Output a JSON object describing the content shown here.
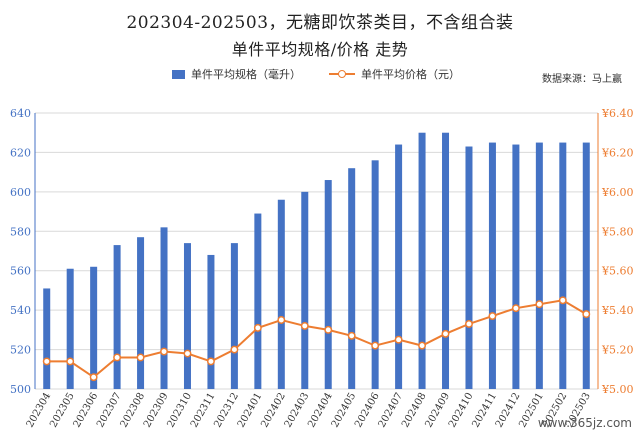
{
  "chart_data": {
    "type": "bar",
    "title": "202304-202503，无糖即饮茶类目，不含组合装",
    "subtitle": "单件平均规格/价格 走势",
    "source": "数据来源：马上赢",
    "categories": [
      "202304",
      "202305",
      "202306",
      "202307",
      "202308",
      "202309",
      "202310",
      "202311",
      "202312",
      "202401",
      "202402",
      "202403",
      "202404",
      "202405",
      "202406",
      "202407",
      "202408",
      "202409",
      "202410",
      "202411",
      "202412",
      "202501",
      "202502",
      "202503"
    ],
    "series": [
      {
        "name": "单件平均规格（毫升）",
        "type": "bar",
        "axis": "left",
        "values": [
          551,
          561,
          562,
          573,
          577,
          582,
          574,
          568,
          574,
          589,
          596,
          600,
          606,
          612,
          616,
          624,
          630,
          630,
          623,
          625,
          624,
          625,
          625,
          625
        ]
      },
      {
        "name": "单件平均价格（元）",
        "type": "line",
        "axis": "right",
        "values": [
          5.14,
          5.14,
          5.06,
          5.16,
          5.16,
          5.19,
          5.18,
          5.14,
          5.2,
          5.31,
          5.35,
          5.32,
          5.3,
          5.27,
          5.22,
          5.25,
          5.22,
          5.28,
          5.33,
          5.37,
          5.41,
          5.43,
          5.45,
          5.38
        ]
      }
    ],
    "left_axis": {
      "ylim": [
        500,
        640
      ],
      "ticks": [
        500,
        520,
        540,
        560,
        580,
        600,
        620,
        640
      ]
    },
    "right_axis": {
      "ylim": [
        5.0,
        6.4
      ],
      "ticks": [
        "¥5.00",
        "¥5.20",
        "¥5.40",
        "¥5.60",
        "¥5.80",
        "¥6.00",
        "¥6.20",
        "¥6.40"
      ]
    },
    "grid": true,
    "legend_position": "top",
    "colors": {
      "bar": "#4472c4",
      "line": "#ed7d31",
      "left_axis": "#4472c4",
      "right_axis": "#ed7d31",
      "grid": "#d9d9d9"
    }
  },
  "watermark": "www.365jz.com"
}
